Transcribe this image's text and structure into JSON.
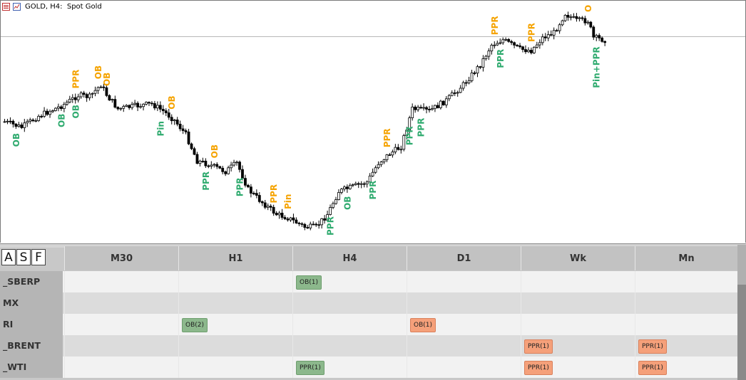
{
  "chart": {
    "title": "GOLD, H4:  Spot Gold",
    "icons": [
      "list-icon",
      "chart-icon"
    ],
    "signal_colors": {
      "bull": "#2eaa6e",
      "bear": "#f5a300"
    },
    "signals": [
      {
        "text": "OB",
        "color": "bull",
        "bar": 4
      },
      {
        "text": "OB",
        "color": "bull",
        "bar": 20
      },
      {
        "text": "OB",
        "color": "bull",
        "bar": 25
      },
      {
        "text": "PPR",
        "color": "bear",
        "bar": 25
      },
      {
        "text": "OB",
        "color": "bear",
        "bar": 33
      },
      {
        "text": "OB",
        "color": "bear",
        "bar": 36
      },
      {
        "text": "Pin",
        "color": "bull",
        "bar": 55
      },
      {
        "text": "OB",
        "color": "bear",
        "bar": 59
      },
      {
        "text": "PPR",
        "color": "bull",
        "bar": 71
      },
      {
        "text": "OB",
        "color": "bear",
        "bar": 74
      },
      {
        "text": "PPR",
        "color": "bull",
        "bar": 83
      },
      {
        "text": "PPR",
        "color": "bear",
        "bar": 95
      },
      {
        "text": "Pin",
        "color": "bear",
        "bar": 100
      },
      {
        "text": "PPR",
        "color": "bull",
        "bar": 115
      },
      {
        "text": "OB",
        "color": "bull",
        "bar": 121
      },
      {
        "text": "PPR",
        "color": "bull",
        "bar": 130
      },
      {
        "text": "PPR",
        "color": "bear",
        "bar": 135
      },
      {
        "text": "PPR",
        "color": "bull",
        "bar": 143
      },
      {
        "text": "PPR",
        "color": "bull",
        "bar": 147
      },
      {
        "text": "PPR",
        "color": "bear",
        "bar": 173
      },
      {
        "text": "PPR",
        "color": "bull",
        "bar": 175
      },
      {
        "text": "PPR",
        "color": "bear",
        "bar": 186
      },
      {
        "text": "O",
        "color": "bear",
        "bar": 206
      },
      {
        "text": "Pin+PPR",
        "color": "bull",
        "bar": 209
      }
    ]
  },
  "toolbar": {
    "buttons": [
      "A",
      "S",
      "F"
    ]
  },
  "table": {
    "columns": [
      "M30",
      "H1",
      "H4",
      "D1",
      "Wk",
      "Mn"
    ],
    "rows": [
      {
        "label": "_SBERP",
        "cells": [
          "",
          "",
          {
            "text": "OB(1)",
            "color": "green"
          },
          "",
          "",
          ""
        ]
      },
      {
        "label": "MX",
        "cells": [
          "",
          "",
          "",
          "",
          "",
          ""
        ]
      },
      {
        "label": "RI",
        "cells": [
          "",
          {
            "text": "OB(2)",
            "color": "green"
          },
          "",
          {
            "text": "OB(1)",
            "color": "orange"
          },
          "",
          ""
        ]
      },
      {
        "label": "_BRENT",
        "cells": [
          "",
          "",
          "",
          "",
          {
            "text": "PPR(1)",
            "color": "orange"
          },
          {
            "text": "PPR(1)",
            "color": "orange"
          }
        ]
      },
      {
        "label": "_WTI",
        "cells": [
          "",
          "",
          {
            "text": "PPR(1)",
            "color": "green"
          },
          "",
          {
            "text": "PPR(1)",
            "color": "orange"
          },
          {
            "text": "PPR(1)",
            "color": "orange"
          }
        ]
      }
    ]
  }
}
